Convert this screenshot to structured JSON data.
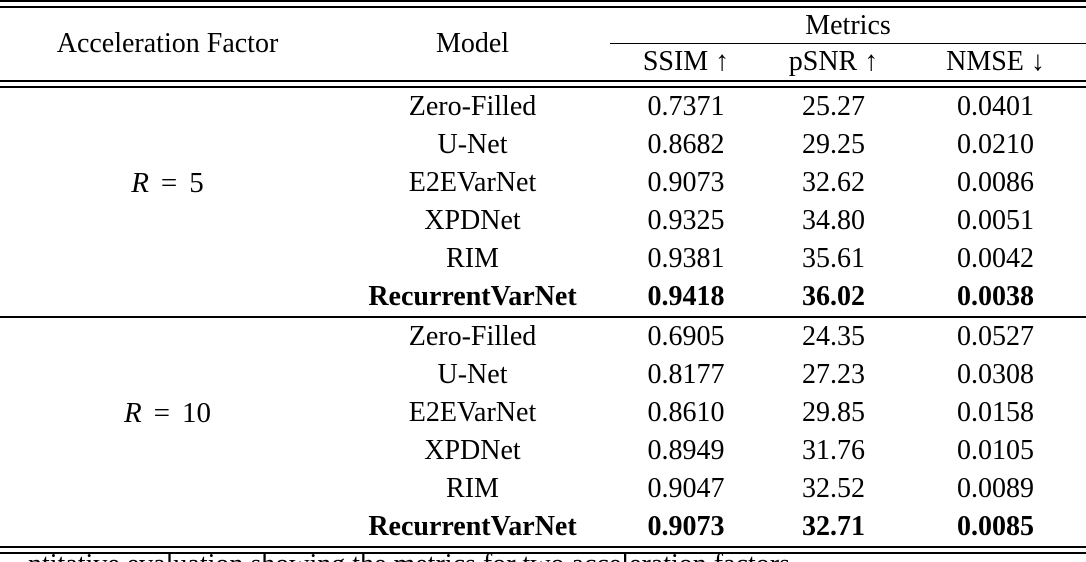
{
  "colors": {
    "text": "#000000",
    "background": "#ffffff",
    "rule": "#000000"
  },
  "table": {
    "header": {
      "acceleration_factor": "Acceleration Factor",
      "model": "Model",
      "metrics_group": "Metrics",
      "metric_columns": {
        "ssim": "SSIM ↑",
        "psnr": "pSNR ↑",
        "nmse": "NMSE ↓"
      }
    },
    "sections": [
      {
        "acceleration_factor": {
          "variable": "R",
          "equals": "=",
          "value": "5"
        },
        "rows": [
          {
            "model": "Zero-Filled",
            "ssim": "0.7371",
            "psnr": "25.27",
            "nmse": "0.0401",
            "bold": false
          },
          {
            "model": "U-Net",
            "ssim": "0.8682",
            "psnr": "29.25",
            "nmse": "0.0210",
            "bold": false
          },
          {
            "model": "E2EVarNet",
            "ssim": "0.9073",
            "psnr": "32.62",
            "nmse": "0.0086",
            "bold": false
          },
          {
            "model": "XPDNet",
            "ssim": "0.9325",
            "psnr": "34.80",
            "nmse": "0.0051",
            "bold": false
          },
          {
            "model": "RIM",
            "ssim": "0.9381",
            "psnr": "35.61",
            "nmse": "0.0042",
            "bold": false
          },
          {
            "model": "RecurrentVarNet",
            "ssim": "0.9418",
            "psnr": "36.02",
            "nmse": "0.0038",
            "bold": true
          }
        ]
      },
      {
        "acceleration_factor": {
          "variable": "R",
          "equals": "=",
          "value": "10"
        },
        "rows": [
          {
            "model": "Zero-Filled",
            "ssim": "0.6905",
            "psnr": "24.35",
            "nmse": "0.0527",
            "bold": false
          },
          {
            "model": "U-Net",
            "ssim": "0.8177",
            "psnr": "27.23",
            "nmse": "0.0308",
            "bold": false
          },
          {
            "model": "E2EVarNet",
            "ssim": "0.8610",
            "psnr": "29.85",
            "nmse": "0.0158",
            "bold": false
          },
          {
            "model": "XPDNet",
            "ssim": "0.8949",
            "psnr": "31.76",
            "nmse": "0.0105",
            "bold": false
          },
          {
            "model": "RIM",
            "ssim": "0.9047",
            "psnr": "32.52",
            "nmse": "0.0089",
            "bold": false
          },
          {
            "model": "RecurrentVarNet",
            "ssim": "0.9073",
            "psnr": "32.71",
            "nmse": "0.0085",
            "bold": true
          }
        ]
      }
    ],
    "caption_clipped_text": "ntitative evaluation showing the metrics for two acceleration factors"
  },
  "chart_data": {
    "type": "table",
    "title": "Metrics",
    "columns": [
      "Acceleration Factor",
      "Model",
      "SSIM ↑",
      "pSNR ↑",
      "NMSE ↓"
    ],
    "rows": [
      [
        "R = 5",
        "Zero-Filled",
        0.7371,
        25.27,
        0.0401
      ],
      [
        "R = 5",
        "U-Net",
        0.8682,
        29.25,
        0.021
      ],
      [
        "R = 5",
        "E2EVarNet",
        0.9073,
        32.62,
        0.0086
      ],
      [
        "R = 5",
        "XPDNet",
        0.9325,
        34.8,
        0.0051
      ],
      [
        "R = 5",
        "RIM",
        0.9381,
        35.61,
        0.0042
      ],
      [
        "R = 5",
        "RecurrentVarNet",
        0.9418,
        36.02,
        0.0038
      ],
      [
        "R = 10",
        "Zero-Filled",
        0.6905,
        24.35,
        0.0527
      ],
      [
        "R = 10",
        "U-Net",
        0.8177,
        27.23,
        0.0308
      ],
      [
        "R = 10",
        "E2EVarNet",
        0.861,
        29.85,
        0.0158
      ],
      [
        "R = 10",
        "XPDNet",
        0.8949,
        31.76,
        0.0105
      ],
      [
        "R = 10",
        "RIM",
        0.9047,
        32.52,
        0.0089
      ],
      [
        "R = 10",
        "RecurrentVarNet",
        0.9073,
        32.71,
        0.0085
      ]
    ]
  }
}
